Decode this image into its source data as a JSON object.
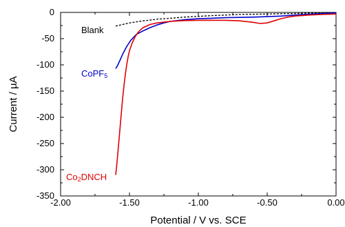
{
  "chart_data": {
    "type": "line",
    "xlabel": "Potential / V vs. SCE",
    "ylabel": "Current / µA",
    "xlim": [
      -2.0,
      0.0
    ],
    "ylim": [
      -350,
      0
    ],
    "x_ticks": [
      -2.0,
      -1.5,
      -1.0,
      -0.5,
      0.0
    ],
    "x_tick_labels": [
      "-2.00",
      "-1.50",
      "-1.00",
      "-0.50",
      "0.00"
    ],
    "y_ticks": [
      0,
      -50,
      -100,
      -150,
      -200,
      -250,
      -300,
      -350
    ],
    "y_tick_labels": [
      "0",
      "-50",
      "-100",
      "-150",
      "-200",
      "-250",
      "-300",
      "-350"
    ],
    "grid": false,
    "series": [
      {
        "name": "Blank",
        "color": "#000000",
        "dash": true,
        "points": [
          [
            -1.6,
            -26
          ],
          [
            -1.5,
            -20
          ],
          [
            -1.4,
            -16
          ],
          [
            -1.3,
            -13
          ],
          [
            -1.2,
            -11
          ],
          [
            -1.1,
            -9
          ],
          [
            -1.0,
            -7.5
          ],
          [
            -0.9,
            -6
          ],
          [
            -0.8,
            -5
          ],
          [
            -0.7,
            -4
          ],
          [
            -0.6,
            -3.5
          ],
          [
            -0.5,
            -3
          ],
          [
            -0.4,
            -2.5
          ],
          [
            -0.3,
            -2
          ],
          [
            -0.2,
            -1.5
          ],
          [
            -0.1,
            -1
          ],
          [
            0.0,
            -0.5
          ]
        ]
      },
      {
        "name": "CoPF5",
        "color": "#0000cc",
        "dash": false,
        "points": [
          [
            -1.6,
            -107
          ],
          [
            -1.59,
            -103
          ],
          [
            -1.57,
            -92
          ],
          [
            -1.55,
            -80
          ],
          [
            -1.52,
            -65
          ],
          [
            -1.49,
            -53
          ],
          [
            -1.45,
            -42
          ],
          [
            -1.4,
            -35
          ],
          [
            -1.35,
            -29
          ],
          [
            -1.3,
            -24
          ],
          [
            -1.25,
            -20
          ],
          [
            -1.2,
            -17
          ],
          [
            -1.1,
            -14
          ],
          [
            -1.0,
            -12
          ],
          [
            -0.9,
            -11
          ],
          [
            -0.8,
            -10
          ],
          [
            -0.7,
            -9.5
          ],
          [
            -0.6,
            -9
          ],
          [
            -0.5,
            -8
          ],
          [
            -0.4,
            -7
          ],
          [
            -0.3,
            -5
          ],
          [
            -0.2,
            -3.5
          ],
          [
            -0.1,
            -2
          ],
          [
            0.0,
            -1
          ]
        ]
      },
      {
        "name": "Co2DNCH",
        "color": "#e00000",
        "dash": false,
        "points": [
          [
            -1.6,
            -310
          ],
          [
            -1.59,
            -285
          ],
          [
            -1.58,
            -255
          ],
          [
            -1.57,
            -225
          ],
          [
            -1.56,
            -195
          ],
          [
            -1.55,
            -165
          ],
          [
            -1.54,
            -140
          ],
          [
            -1.53,
            -118
          ],
          [
            -1.52,
            -100
          ],
          [
            -1.51,
            -85
          ],
          [
            -1.5,
            -73
          ],
          [
            -1.48,
            -58
          ],
          [
            -1.46,
            -47
          ],
          [
            -1.44,
            -39
          ],
          [
            -1.42,
            -33
          ],
          [
            -1.4,
            -29
          ],
          [
            -1.35,
            -23
          ],
          [
            -1.3,
            -20
          ],
          [
            -1.2,
            -17
          ],
          [
            -1.1,
            -15.5
          ],
          [
            -1.0,
            -15
          ],
          [
            -0.9,
            -15
          ],
          [
            -0.8,
            -15
          ],
          [
            -0.7,
            -16
          ],
          [
            -0.6,
            -19
          ],
          [
            -0.55,
            -21
          ],
          [
            -0.5,
            -20
          ],
          [
            -0.45,
            -16
          ],
          [
            -0.4,
            -12
          ],
          [
            -0.35,
            -9
          ],
          [
            -0.3,
            -7
          ],
          [
            -0.2,
            -5
          ],
          [
            -0.1,
            -4
          ],
          [
            0.0,
            -3
          ]
        ]
      }
    ],
    "annotations": [
      {
        "text": "Blank",
        "color": "#000000"
      },
      {
        "text": "CoPF",
        "sub": "5",
        "color": "#0000cc"
      },
      {
        "text": "Co",
        "sub": "2",
        "rest": "DNCH",
        "color": "#e00000"
      }
    ]
  }
}
